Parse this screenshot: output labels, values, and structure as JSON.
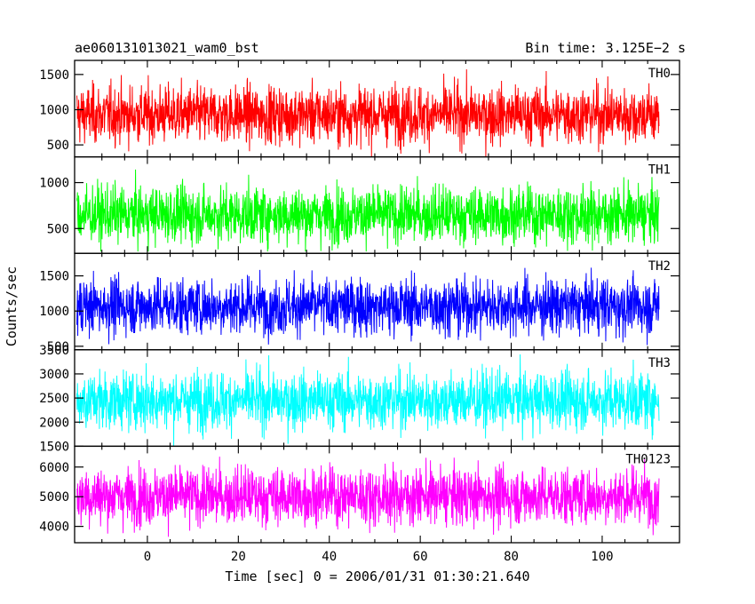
{
  "header": {
    "title_left": "ae060131013021_wam0_bst",
    "title_right": "Bin time: 3.125E−2 s"
  },
  "axes": {
    "ylabel": "Counts/sec",
    "xlabel": "Time [sec] 0 = 2006/01/31 01:30:21.640"
  },
  "chart_data": {
    "type": "line",
    "xlim": [
      -16,
      117
    ],
    "data_x_range": [
      -15.5,
      112.5
    ],
    "xticks": [
      0,
      20,
      40,
      60,
      80,
      100
    ],
    "shared_x": true,
    "grid": false,
    "series": [
      {
        "name": "TH0",
        "color": "#ff0000",
        "ylim": [
          330,
          1700
        ],
        "yticks": [
          500,
          1000,
          1500
        ],
        "mean": 930,
        "low": 330,
        "high": 1700
      },
      {
        "name": "TH1",
        "color": "#00ff00",
        "ylim": [
          230,
          1280
        ],
        "yticks": [
          500,
          1000
        ],
        "mean": 650,
        "low": 250,
        "high": 1280
      },
      {
        "name": "TH2",
        "color": "#0000ff",
        "ylim": [
          450,
          1820
        ],
        "yticks": [
          500,
          1000,
          1500
        ],
        "mean": 1070,
        "low": 470,
        "high": 1820
      },
      {
        "name": "TH3",
        "color": "#00ffff",
        "ylim": [
          1500,
          3500
        ],
        "yticks": [
          1500,
          2000,
          2500,
          3000,
          3500
        ],
        "mean": 2450,
        "low": 1500,
        "high": 3500
      },
      {
        "name": "TH0123",
        "color": "#ff00ff",
        "ylim": [
          3450,
          6700
        ],
        "yticks": [
          4000,
          5000,
          6000
        ],
        "mean": 5020,
        "low": 3450,
        "high": 6700
      }
    ]
  }
}
